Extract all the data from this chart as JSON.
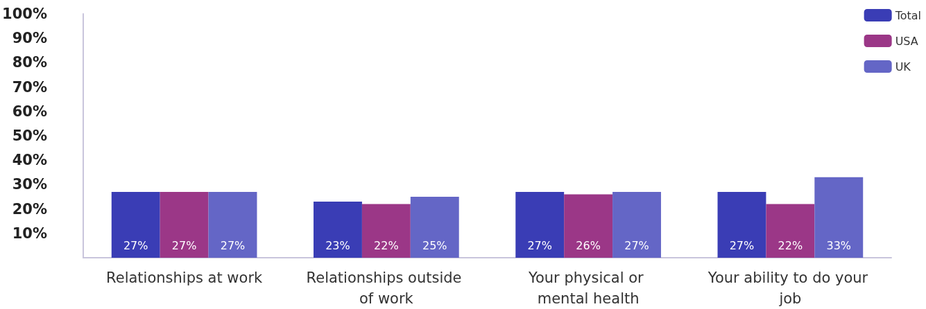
{
  "chart_data": {
    "type": "bar",
    "categories": [
      "Relationships at work",
      "Relationships outside of work",
      "Your physical or mental health",
      "Your ability to do your job"
    ],
    "series": [
      {
        "name": "Total",
        "color": "#3a3db5",
        "values": [
          27,
          23,
          27,
          27
        ],
        "value_labels": [
          "27%",
          "23%",
          "27%",
          "27%"
        ]
      },
      {
        "name": "USA",
        "color": "#9b3787",
        "values": [
          27,
          22,
          26,
          22
        ],
        "value_labels": [
          "27%",
          "22%",
          "26%",
          "22%"
        ]
      },
      {
        "name": "UK",
        "color": "#6466c6",
        "values": [
          27,
          25,
          27,
          33
        ],
        "value_labels": [
          "27%",
          "25%",
          "27%",
          "33%"
        ]
      }
    ],
    "ylim": [
      0,
      100
    ],
    "yticks": [
      {
        "value": 10,
        "label": "10%"
      },
      {
        "value": 20,
        "label": "20%"
      },
      {
        "value": 30,
        "label": "30%"
      },
      {
        "value": 40,
        "label": "40%"
      },
      {
        "value": 50,
        "label": "50%"
      },
      {
        "value": 60,
        "label": "60%"
      },
      {
        "value": 70,
        "label": "70%"
      },
      {
        "value": 80,
        "label": "80%"
      },
      {
        "value": 90,
        "label": "90%"
      },
      {
        "value": 100,
        "label": "100%"
      }
    ],
    "grid": false,
    "legend": "top right"
  }
}
